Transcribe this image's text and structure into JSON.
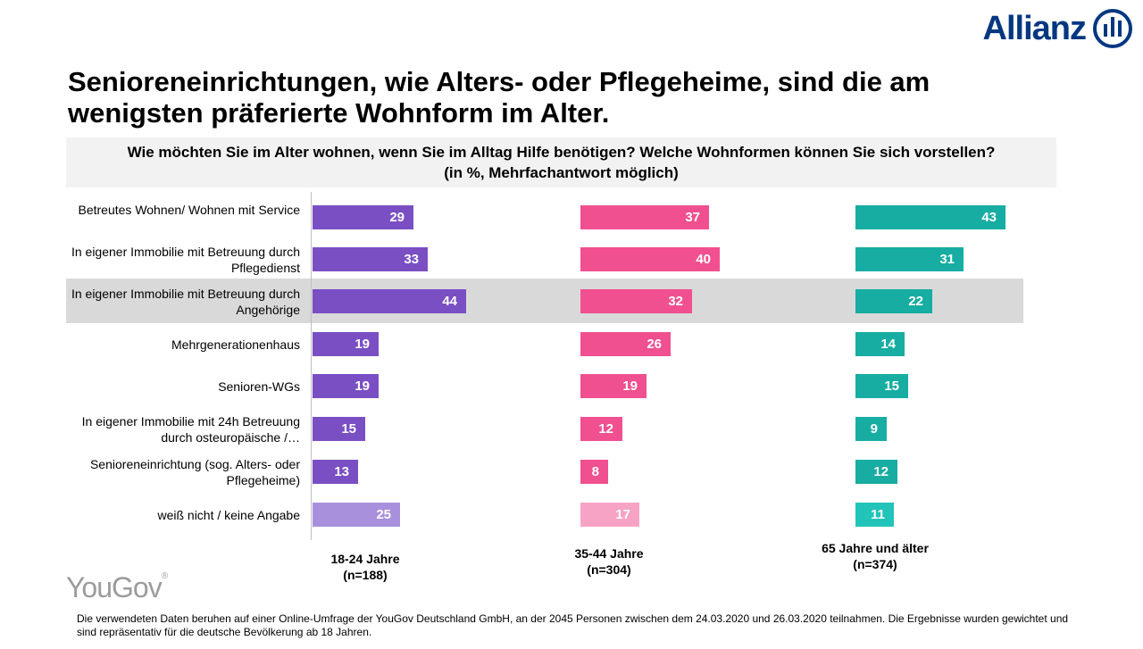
{
  "brand": {
    "name": "Allianz",
    "accent": "#003781"
  },
  "headline_line1": "Senioreneinrichtungen, wie Alters- oder Pflegeheime, sind die am",
  "headline_line2": "wenigsten präferierte Wohnform im Alter.",
  "question_line1": "Wie möchten Sie im Alter wohnen, wenn Sie im Alltag Hilfe benötigen? Welche Wohnformen können Sie sich vorstellen?",
  "question_line2": "(in %, Mehrfachantwort möglich)",
  "source_brand": "YouGov",
  "footnote": "Die verwendeten Daten beruhen auf einer Online-Umfrage der YouGov Deutschland GmbH, an der 2045 Personen zwischen dem 24.03.2020 und 26.03.2020 teilnahmen. Die Ergebnisse wurden gewichtet und sind repräsentativ für die deutsche Bevölkerung ab 18 Jahren.",
  "chart_data": {
    "type": "bar",
    "orientation": "horizontal",
    "categories": [
      "Betreutes Wohnen/ Wohnen mit Service",
      "In eigener Immobilie mit Betreuung durch Pflegedienst",
      "In eigener Immobilie mit Betreuung durch Angehörige",
      "Mehrgenerationenhaus",
      "Senioren-WGs",
      "In eigener Immobilie mit 24h Betreuung durch osteuropäische /…",
      "Senioreneinrichtung (sog. Alters- oder Pflegeheime)",
      "weiß nicht / keine Angabe"
    ],
    "highlighted_category": 2,
    "series": [
      {
        "name": "18-24 Jahre",
        "sample": "(n=188)",
        "color": "#7a4fc4",
        "color_last": "#a990dd",
        "values": [
          29,
          33,
          44,
          19,
          19,
          15,
          13,
          25
        ]
      },
      {
        "name": "35-44 Jahre",
        "sample": "(n=304)",
        "color": "#f0508f",
        "color_last": "#f7a3c6",
        "values": [
          37,
          40,
          32,
          26,
          19,
          12,
          8,
          17
        ]
      },
      {
        "name": "65 Jahre und älter",
        "sample": "(n=374)",
        "color": "#17ada3",
        "color_last": "#22c4ba",
        "values": [
          43,
          31,
          22,
          14,
          15,
          9,
          12,
          11
        ]
      }
    ],
    "xlim": [
      0,
      50
    ]
  }
}
